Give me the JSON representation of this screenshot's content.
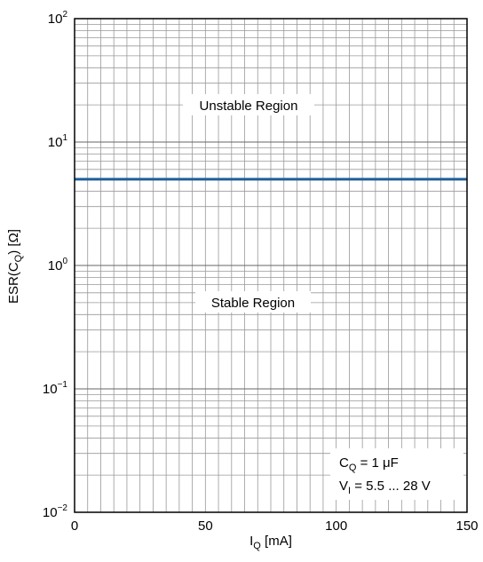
{
  "chart_data": {
    "type": "line",
    "xlabel": {
      "main": "I",
      "sub": "Q",
      "tail": " [mA]"
    },
    "ylabel": {
      "pre": "ESR(C",
      "sub": "Q",
      "post": ") [Ω]"
    },
    "xlim": [
      0,
      150
    ],
    "ylim": [
      0.01,
      100
    ],
    "yscale": "log",
    "grid": true,
    "x_ticks": [
      "0",
      "50",
      "100",
      "150"
    ],
    "x_tick_values": [
      0,
      50,
      100,
      150
    ],
    "y_ticks": [
      {
        "base": "10",
        "exp": "2",
        "value": 100
      },
      {
        "base": "10",
        "exp": "1",
        "value": 10
      },
      {
        "base": "10",
        "exp": "0",
        "value": 1
      },
      {
        "base": "10",
        "exp": "−1",
        "value": 0.1
      },
      {
        "base": "10",
        "exp": "−2",
        "value": 0.01
      }
    ],
    "series": [
      {
        "x": [
          0,
          150
        ],
        "y": [
          5,
          5
        ],
        "color": "#1f5f99"
      }
    ],
    "annotations": {
      "unstable": "Unstable Region",
      "stable": "Stable Region",
      "conditions": [
        {
          "main": "C",
          "sub": "Q",
          "rest": " = 1 μF"
        },
        {
          "main": "V",
          "sub": "I",
          "rest": " = 5.5 ... 28 V"
        }
      ]
    }
  }
}
